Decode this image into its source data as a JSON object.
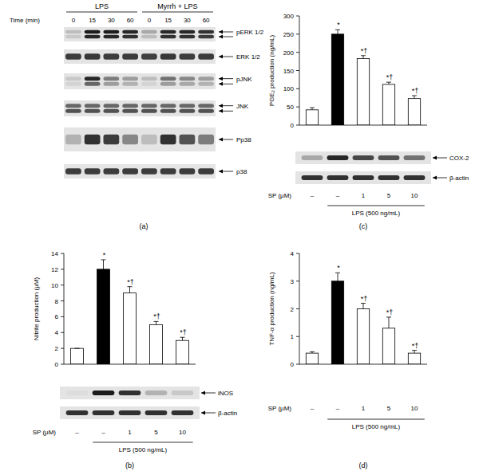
{
  "blot_panel": {
    "panel": "(a)",
    "time_label": "Time (min)",
    "groups": [
      {
        "label": "LPS",
        "times": [
          "0",
          "15",
          "30",
          "60"
        ]
      },
      {
        "label": "Myrrh + LPS",
        "times": [
          "0",
          "15",
          "30",
          "60"
        ]
      }
    ],
    "rows": [
      {
        "label": "pERK 1/2",
        "bands": [
          [
            0.2,
            0.95,
            0.95,
            0.9,
            0.3,
            0.9,
            0.9,
            0.85
          ],
          [
            0.15,
            0.9,
            0.9,
            0.85,
            0.2,
            0.85,
            0.85,
            0.8
          ]
        ]
      },
      {
        "label": "ERK 1/2",
        "bands": [
          [
            0.8,
            0.82,
            0.8,
            0.8,
            0.78,
            0.82,
            0.8,
            0.8
          ]
        ]
      },
      {
        "label": "pJNK",
        "bands": [
          [
            0.15,
            0.9,
            0.5,
            0.35,
            0.2,
            0.55,
            0.45,
            0.35
          ],
          [
            0.1,
            0.6,
            0.35,
            0.25,
            0.1,
            0.35,
            0.3,
            0.25
          ]
        ]
      },
      {
        "label": "JNK",
        "bands": [
          [
            0.6,
            0.6,
            0.6,
            0.6,
            0.6,
            0.6,
            0.6,
            0.6
          ],
          [
            0.7,
            0.7,
            0.7,
            0.7,
            0.7,
            0.7,
            0.7,
            0.7
          ]
        ]
      },
      {
        "label": "Pp38",
        "bands": [
          [
            0.25,
            0.85,
            0.8,
            0.45,
            0.2,
            0.85,
            0.7,
            0.5
          ]
        ]
      },
      {
        "label": "p38",
        "bands": [
          [
            0.8,
            0.8,
            0.8,
            0.8,
            0.8,
            0.8,
            0.8,
            0.8
          ]
        ]
      }
    ]
  },
  "chart_data": [
    {
      "type": "bar",
      "panel": "(b)",
      "y_label": "Nitrite production (μM)",
      "x_label": "SP (μM)",
      "categories": [
        "–",
        "–",
        "1",
        "5",
        "10"
      ],
      "x_group": {
        "label": "LPS (500 ng/mL)",
        "from": 1,
        "to": 4
      },
      "values": [
        2,
        12,
        9,
        5,
        3
      ],
      "errors": [
        0,
        1.2,
        0.8,
        0.4,
        0.4
      ],
      "annotations": [
        null,
        "*",
        "*†",
        "*†",
        "*†"
      ],
      "colors": [
        "#ffffff",
        "#000000",
        "#ffffff",
        "#ffffff",
        "#ffffff"
      ],
      "ylim": [
        0,
        14
      ],
      "yticks": [
        0,
        2,
        4,
        6,
        8,
        10,
        12,
        14
      ],
      "grid": false,
      "blots": [
        {
          "label": "iNOS",
          "bands": [
            0.05,
            0.95,
            0.85,
            0.25,
            0.15
          ]
        },
        {
          "label": "β-actin",
          "bands": [
            0.85,
            0.85,
            0.85,
            0.85,
            0.85
          ]
        }
      ]
    },
    {
      "type": "bar",
      "panel": "(c)",
      "y_label": "PGE₂ production (ng/mL)",
      "x_label": "SP (μM)",
      "categories": [
        "–",
        "–",
        "1",
        "5",
        "10"
      ],
      "x_group": {
        "label": "LPS (500 ng/mL)",
        "from": 1,
        "to": 4
      },
      "values": [
        42,
        250,
        183,
        112,
        73
      ],
      "errors": [
        6,
        12,
        8,
        6,
        8
      ],
      "annotations": [
        null,
        "*",
        "*†",
        "*†",
        "*†"
      ],
      "colors": [
        "#ffffff",
        "#000000",
        "#ffffff",
        "#ffffff",
        "#ffffff"
      ],
      "ylim": [
        0,
        300
      ],
      "yticks": [
        0,
        50,
        100,
        150,
        200,
        250,
        300
      ],
      "grid": false,
      "blots": [
        {
          "label": "COX-2",
          "bands": [
            0.3,
            0.9,
            0.75,
            0.7,
            0.55
          ]
        },
        {
          "label": "β-actin",
          "bands": [
            0.85,
            0.85,
            0.85,
            0.85,
            0.85
          ]
        }
      ]
    },
    {
      "type": "bar",
      "panel": "(d)",
      "y_label": "TNF-α production (ng/mL)",
      "x_label": "SP (μM)",
      "categories": [
        "–",
        "–",
        "1",
        "5",
        "10"
      ],
      "x_group": {
        "label": "LPS (500 ng/mL)",
        "from": 1,
        "to": 4
      },
      "values": [
        0.4,
        3.0,
        2.0,
        1.3,
        0.4
      ],
      "errors": [
        0.05,
        0.3,
        0.2,
        0.4,
        0.1
      ],
      "annotations": [
        null,
        "*",
        "*†",
        "*†",
        "*†"
      ],
      "colors": [
        "#ffffff",
        "#000000",
        "#ffffff",
        "#ffffff",
        "#ffffff"
      ],
      "ylim": [
        0,
        4
      ],
      "yticks": [
        0,
        1,
        2,
        3,
        4
      ],
      "grid": false
    }
  ]
}
